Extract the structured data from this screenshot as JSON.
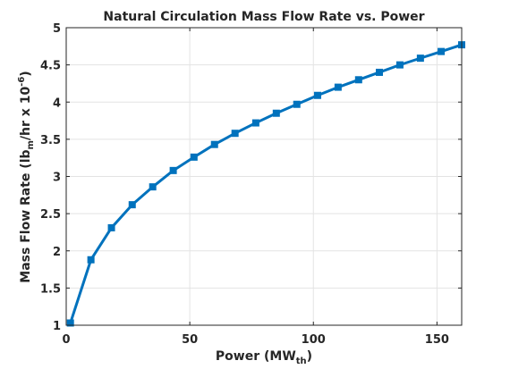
{
  "chart_data": {
    "type": "line",
    "title": "Natural Circulation Mass Flow Rate vs. Power",
    "xlabel": "Power (MW_th)",
    "xlabel_parts": {
      "main": "Power (MW",
      "sub": "th",
      "end": ")"
    },
    "ylabel": "Mass Flow Rate (lb_m/hr x 10^-6)",
    "ylabel_parts": {
      "a": "Mass Flow Rate (lb",
      "sub": "m",
      "b": "/hr x 10",
      "sup": "-6",
      "c": ")"
    },
    "xlim": [
      0,
      160
    ],
    "ylim": [
      1,
      5
    ],
    "xticks": [
      0,
      50,
      100,
      150
    ],
    "yticks": [
      1,
      1.5,
      2,
      2.5,
      3,
      3.5,
      4,
      4.5,
      5
    ],
    "xtick_labels": [
      "0",
      "50",
      "100",
      "150"
    ],
    "ytick_labels": [
      "1",
      "1.5",
      "2",
      "2.5",
      "3",
      "3.5",
      "4",
      "4.5",
      "5"
    ],
    "grid": true,
    "series": [
      {
        "color": "#0072bd",
        "marker": "square",
        "x": [
          1.7,
          10,
          18.3,
          26.7,
          35,
          43.3,
          51.7,
          60,
          68.3,
          76.7,
          85,
          93.3,
          101.7,
          110,
          118.3,
          126.7,
          135,
          143.3,
          151.7,
          160
        ],
        "y": [
          1.03,
          1.88,
          2.31,
          2.62,
          2.86,
          3.08,
          3.26,
          3.43,
          3.58,
          3.72,
          3.85,
          3.97,
          4.09,
          4.2,
          4.3,
          4.4,
          4.5,
          4.59,
          4.68,
          4.77
        ]
      }
    ]
  }
}
